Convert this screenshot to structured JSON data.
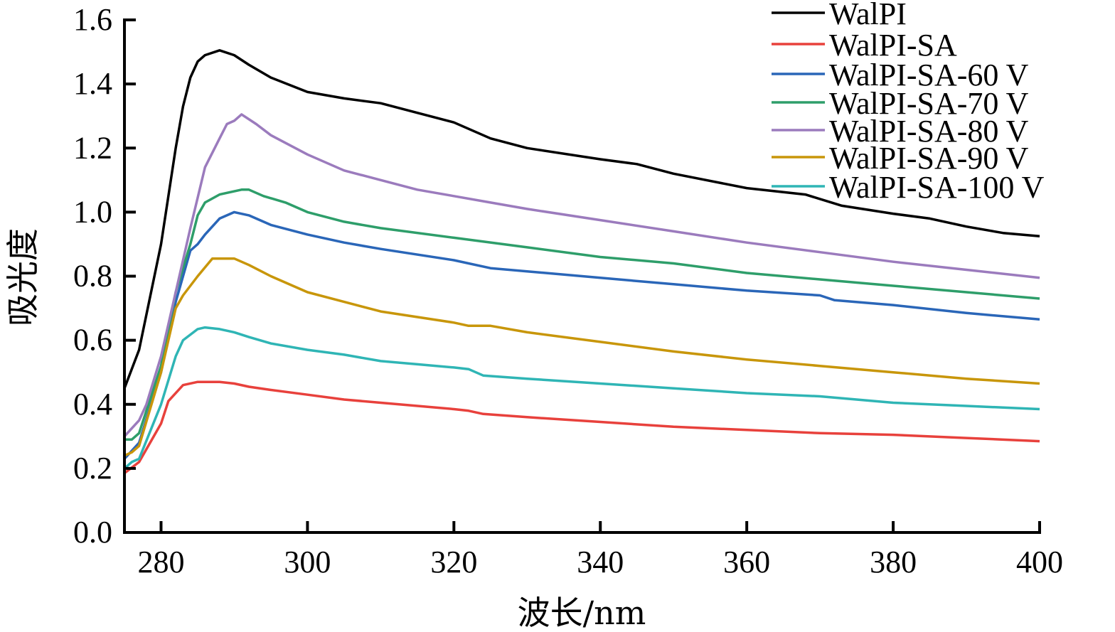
{
  "chart_data": {
    "type": "line",
    "title": "",
    "xlabel": "波长/nm",
    "ylabel": "吸光度",
    "xlim": [
      275,
      400
    ],
    "ylim": [
      0,
      1.6
    ],
    "xticks": [
      "280",
      "300",
      "320",
      "340",
      "360",
      "380",
      "400"
    ],
    "yticks": [
      "0.0",
      "0.2",
      "0.4",
      "0.6",
      "0.8",
      "1.0",
      "1.2",
      "1.4",
      "1.6"
    ],
    "grid": false,
    "legend_position": "top-right",
    "series": [
      {
        "name": "WalPI",
        "color": "#000000",
        "x": [
          275,
          277,
          280,
          282,
          283,
          284,
          285,
          286,
          288,
          290,
          292,
          295,
          300,
          305,
          310,
          315,
          320,
          322,
          325,
          330,
          340,
          345,
          350,
          360,
          368,
          373,
          380,
          385,
          390,
          395,
          400
        ],
        "y": [
          0.45,
          0.57,
          0.9,
          1.2,
          1.33,
          1.42,
          1.47,
          1.49,
          1.505,
          1.49,
          1.46,
          1.42,
          1.375,
          1.355,
          1.34,
          1.31,
          1.28,
          1.26,
          1.23,
          1.2,
          1.165,
          1.15,
          1.12,
          1.075,
          1.055,
          1.02,
          0.995,
          0.98,
          0.955,
          0.935,
          0.925
        ]
      },
      {
        "name": "WalPI-SA",
        "color": "#e8413c",
        "x": [
          275,
          277,
          280,
          281,
          283,
          285,
          288,
          290,
          292,
          295,
          300,
          305,
          310,
          320,
          322,
          324,
          330,
          340,
          350,
          360,
          370,
          380,
          390,
          400
        ],
        "y": [
          0.185,
          0.22,
          0.34,
          0.41,
          0.46,
          0.47,
          0.47,
          0.465,
          0.455,
          0.445,
          0.43,
          0.415,
          0.405,
          0.385,
          0.38,
          0.37,
          0.36,
          0.345,
          0.33,
          0.32,
          0.31,
          0.305,
          0.295,
          0.285
        ]
      },
      {
        "name": "WalPI-SA-60 V",
        "color": "#2a66b8",
        "x": [
          275,
          277,
          280,
          282,
          284,
          285,
          286,
          288,
          290,
          292,
          295,
          300,
          305,
          310,
          320,
          325,
          330,
          340,
          350,
          360,
          370,
          372,
          380,
          390,
          400
        ],
        "y": [
          0.23,
          0.28,
          0.5,
          0.72,
          0.88,
          0.9,
          0.93,
          0.98,
          1.0,
          0.99,
          0.96,
          0.93,
          0.905,
          0.885,
          0.85,
          0.825,
          0.815,
          0.795,
          0.775,
          0.755,
          0.74,
          0.725,
          0.71,
          0.685,
          0.665
        ]
      },
      {
        "name": "WalPI-SA-70 V",
        "color": "#2e9e6a",
        "x": [
          275,
          276,
          277,
          280,
          282,
          284,
          285,
          286,
          288,
          289,
          291,
          292,
          294,
          297,
          300,
          305,
          310,
          320,
          330,
          340,
          350,
          360,
          370,
          380,
          390,
          400
        ],
        "y": [
          0.29,
          0.29,
          0.31,
          0.52,
          0.75,
          0.9,
          0.99,
          1.03,
          1.055,
          1.06,
          1.07,
          1.07,
          1.05,
          1.03,
          1.0,
          0.97,
          0.95,
          0.92,
          0.89,
          0.86,
          0.84,
          0.81,
          0.79,
          0.77,
          0.75,
          0.73
        ]
      },
      {
        "name": "WalPI-SA-80 V",
        "color": "#9b7bbd",
        "x": [
          275,
          277,
          278,
          280,
          282,
          284,
          286,
          288,
          289,
          290,
          291,
          293,
          295,
          300,
          305,
          310,
          315,
          320,
          325,
          330,
          340,
          350,
          360,
          370,
          380,
          390,
          400
        ],
        "y": [
          0.3,
          0.35,
          0.4,
          0.55,
          0.75,
          0.95,
          1.14,
          1.23,
          1.275,
          1.285,
          1.305,
          1.275,
          1.24,
          1.18,
          1.13,
          1.1,
          1.07,
          1.05,
          1.03,
          1.01,
          0.975,
          0.94,
          0.905,
          0.875,
          0.845,
          0.82,
          0.795
        ]
      },
      {
        "name": "WalPI-SA-90 V",
        "color": "#c8960a",
        "x": [
          275,
          276,
          277,
          280,
          282,
          283,
          285,
          287,
          290,
          292,
          295,
          300,
          305,
          310,
          320,
          322,
          325,
          330,
          340,
          350,
          360,
          370,
          380,
          390,
          400
        ],
        "y": [
          0.24,
          0.25,
          0.27,
          0.5,
          0.7,
          0.74,
          0.8,
          0.855,
          0.855,
          0.835,
          0.8,
          0.75,
          0.72,
          0.69,
          0.655,
          0.645,
          0.645,
          0.625,
          0.595,
          0.565,
          0.54,
          0.52,
          0.5,
          0.48,
          0.465
        ]
      },
      {
        "name": "WalPI-SA-100 V",
        "color": "#2fb5b5",
        "x": [
          275,
          276,
          277,
          280,
          282,
          283,
          285,
          286,
          288,
          290,
          292,
          295,
          300,
          305,
          310,
          315,
          320,
          322,
          324,
          330,
          340,
          350,
          360,
          370,
          375,
          380,
          390,
          400
        ],
        "y": [
          0.2,
          0.22,
          0.23,
          0.4,
          0.55,
          0.6,
          0.635,
          0.64,
          0.635,
          0.625,
          0.61,
          0.59,
          0.57,
          0.555,
          0.535,
          0.525,
          0.515,
          0.51,
          0.49,
          0.48,
          0.465,
          0.45,
          0.435,
          0.425,
          0.415,
          0.405,
          0.395,
          0.385
        ]
      }
    ]
  }
}
